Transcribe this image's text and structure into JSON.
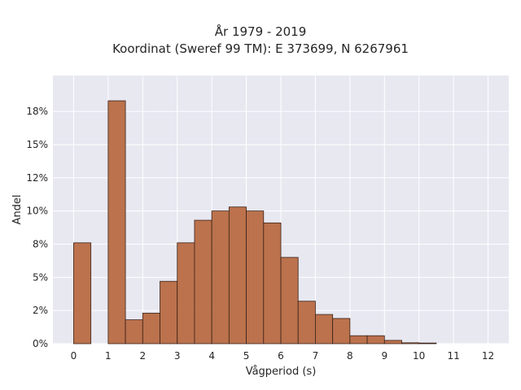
{
  "chart_data": {
    "type": "bar",
    "title": "År 1979 - 2019",
    "subtitle": "Koordinat (Sweref 99 TM): E 373699, N 6267961",
    "xlabel": "Vågperiod (s)",
    "ylabel": "Andel",
    "bin_width": 0.5,
    "bins": [
      {
        "x0": 0.0,
        "value": 7.6
      },
      {
        "x0": 0.5,
        "value": 0.0
      },
      {
        "x0": 1.0,
        "value": 18.3
      },
      {
        "x0": 1.5,
        "value": 1.8
      },
      {
        "x0": 2.0,
        "value": 2.3
      },
      {
        "x0": 2.5,
        "value": 4.7
      },
      {
        "x0": 3.0,
        "value": 7.6
      },
      {
        "x0": 3.5,
        "value": 9.3
      },
      {
        "x0": 4.0,
        "value": 10.0
      },
      {
        "x0": 4.5,
        "value": 10.3
      },
      {
        "x0": 5.0,
        "value": 10.0
      },
      {
        "x0": 5.5,
        "value": 9.1
      },
      {
        "x0": 6.0,
        "value": 6.5
      },
      {
        "x0": 6.5,
        "value": 3.2
      },
      {
        "x0": 7.0,
        "value": 2.2
      },
      {
        "x0": 7.5,
        "value": 1.9
      },
      {
        "x0": 8.0,
        "value": 0.6
      },
      {
        "x0": 8.5,
        "value": 0.6
      },
      {
        "x0": 9.0,
        "value": 0.25
      },
      {
        "x0": 9.5,
        "value": 0.07
      },
      {
        "x0": 10.0,
        "value": 0.05
      }
    ],
    "xlim": [
      -0.6,
      12.6
    ],
    "ylim": [
      0,
      20.2
    ],
    "xticks": [
      "0",
      "1",
      "2",
      "3",
      "4",
      "5",
      "6",
      "7",
      "8",
      "9",
      "10",
      "11",
      "12"
    ],
    "yticks": [
      {
        "value": 0,
        "label": "0%"
      },
      {
        "value": 2.5,
        "label": "2%"
      },
      {
        "value": 5,
        "label": "5%"
      },
      {
        "value": 7.5,
        "label": "8%"
      },
      {
        "value": 10,
        "label": "10%"
      },
      {
        "value": 12.5,
        "label": "12%"
      },
      {
        "value": 15,
        "label": "15%"
      },
      {
        "value": 17.5,
        "label": "18%"
      }
    ],
    "grid": true,
    "colors": {
      "bar_fill": "#b86b43",
      "bar_stroke": "#3a2218",
      "plot_bg": "#e8e8f1",
      "grid": "#ffffff"
    }
  }
}
